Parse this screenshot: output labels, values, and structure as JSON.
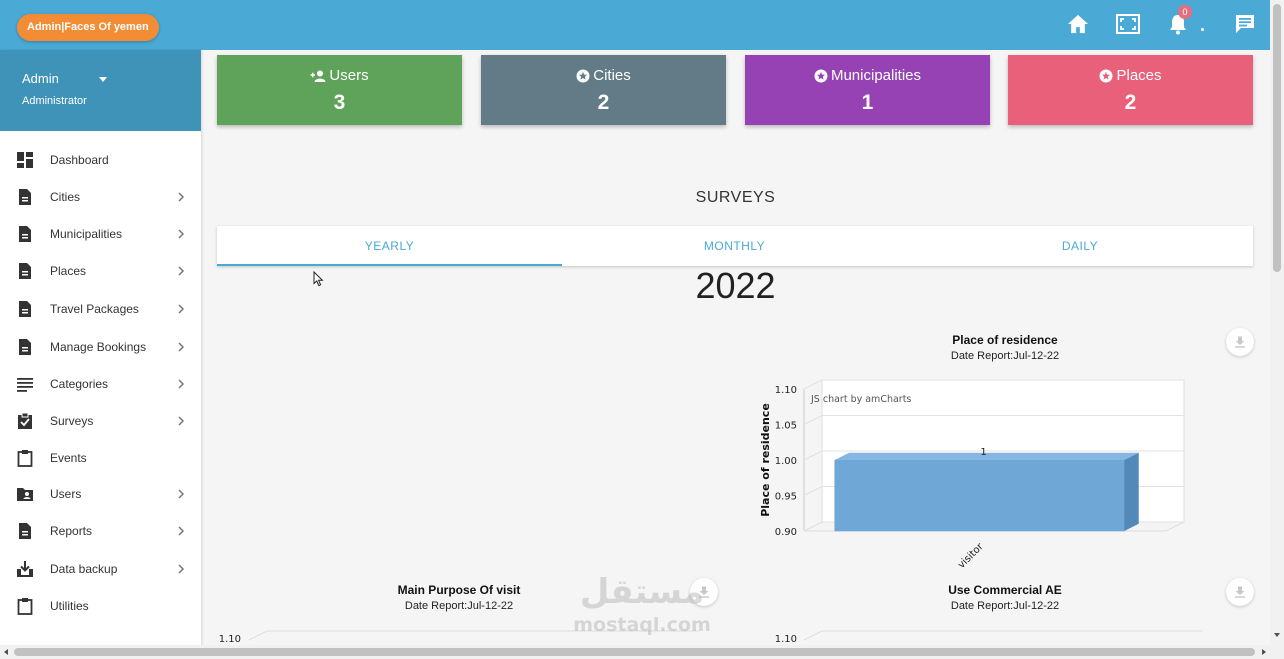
{
  "header": {
    "brand": "Admin|Faces Of yemen",
    "notification_count": "0",
    "icons": [
      "home-icon",
      "fullscreen-icon",
      "bell-icon",
      "chat-icon"
    ]
  },
  "user": {
    "name": "Admin",
    "role": "Administrator"
  },
  "sidebar": {
    "items": [
      {
        "label": "Dashboard",
        "icon": "dashboard-icon",
        "has_submenu": false
      },
      {
        "label": "Cities",
        "icon": "document-icon",
        "has_submenu": true
      },
      {
        "label": "Municipalities",
        "icon": "document-icon",
        "has_submenu": true
      },
      {
        "label": "Places",
        "icon": "document-icon",
        "has_submenu": true
      },
      {
        "label": "Travel Packages",
        "icon": "document-icon",
        "has_submenu": true
      },
      {
        "label": "Manage Bookings",
        "icon": "document-icon",
        "has_submenu": true
      },
      {
        "label": "Categories",
        "icon": "list-icon",
        "has_submenu": true
      },
      {
        "label": "Surveys",
        "icon": "clipboard-check-icon",
        "has_submenu": true
      },
      {
        "label": "Events",
        "icon": "clipboard-icon",
        "has_submenu": false
      },
      {
        "label": "Users",
        "icon": "users-folder-icon",
        "has_submenu": true
      },
      {
        "label": "Reports",
        "icon": "document-icon",
        "has_submenu": true
      },
      {
        "label": "Data backup",
        "icon": "download-box-icon",
        "has_submenu": true
      },
      {
        "label": "Utilities",
        "icon": "clipboard-icon",
        "has_submenu": false
      }
    ]
  },
  "stats": [
    {
      "label": "Users",
      "value": "3",
      "color": "#5fa35a",
      "icon": "users-add-icon"
    },
    {
      "label": "Cities",
      "value": "2",
      "color": "#627b87",
      "icon": "star-circle-icon"
    },
    {
      "label": "Municipalities",
      "value": "1",
      "color": "#9642b5",
      "icon": "star-circle-icon"
    },
    {
      "label": "Places",
      "value": "2",
      "color": "#e86079",
      "icon": "star-circle-icon"
    }
  ],
  "surveys": {
    "title": "SURVEYS",
    "tabs": [
      "YEARLY",
      "MONTHLY",
      "DAILY"
    ],
    "active_tab": "YEARLY",
    "year": "2022"
  },
  "charts": [
    {
      "title": "Place of residence",
      "date": "Date Report:Jul-12-22"
    },
    {
      "title": "Main Purpose Of visit",
      "date": "Date Report:Jul-12-22"
    },
    {
      "title": "Use Commercial AE",
      "date": "Date Report:Jul-12-22"
    }
  ],
  "chart_data": [
    {
      "type": "bar",
      "title": "Place of residence",
      "subtitle": "Date Report:Jul-12-22",
      "credit": "JS chart by amCharts",
      "ylabel": "Place of residence",
      "categories": [
        "visitor"
      ],
      "values": [
        1
      ],
      "data_labels": [
        "1"
      ],
      "ylim": [
        0.9,
        1.1
      ],
      "yticks": [
        "1.10",
        "1.05",
        "1.00",
        "0.95",
        "0.90"
      ],
      "color": "#6fa8d6",
      "grid": true
    },
    {
      "type": "bar",
      "title": "Main Purpose Of visit",
      "subtitle": "Date Report:Jul-12-22",
      "yticks": [
        "1.10"
      ]
    },
    {
      "type": "bar",
      "title": "Use Commercial AE",
      "subtitle": "Date Report:Jul-12-22",
      "yticks": [
        "1.10"
      ]
    }
  ],
  "watermark": {
    "arabic": "مستقل",
    "latin": "mostaql.com"
  }
}
